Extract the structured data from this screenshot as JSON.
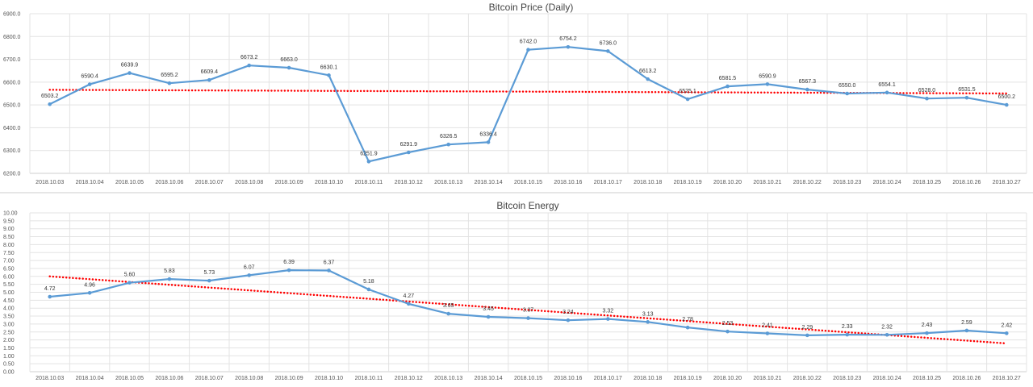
{
  "chart_data": [
    {
      "type": "line",
      "title": "Bitcoin Price (Daily)",
      "categories": [
        "2018.10.03",
        "2018.10.04",
        "2018.10.05",
        "2018.10.06",
        "2018.10.07",
        "2018.10.08",
        "2018.10.09",
        "2018.10.10",
        "2018.10.11",
        "2018.10.12",
        "2018.10.13",
        "2018.10.14",
        "2018.10.15",
        "2018.10.16",
        "2018.10.17",
        "2018.10.18",
        "2018.10.19",
        "2018.10.20",
        "2018.10.21",
        "2018.10.22",
        "2018.10.23",
        "2018.10.24",
        "2018.10.25",
        "2018.10.26",
        "2018.10.27"
      ],
      "series": [
        {
          "values": [
            6503.2,
            6590.4,
            6639.9,
            6595.2,
            6609.4,
            6673.2,
            6663.0,
            6630.1,
            6251.9,
            6291.9,
            6326.5,
            6336.4,
            6742.0,
            6754.2,
            6736.0,
            6613.2,
            6525.1,
            6581.5,
            6590.9,
            6567.3,
            6550.0,
            6554.1,
            6528.0,
            6531.5,
            6500.2
          ],
          "labels": [
            "6503.2",
            "6590.4",
            "6639.9",
            "6595.2",
            "6609.4",
            "6673.2",
            "6663.0",
            "6630.1",
            "6251.9",
            "6291.9",
            "6326.5",
            "6336.4",
            "6742.0",
            "6754.2",
            "6736.0",
            "6613.2",
            "6525.1",
            "6581.5",
            "6590.9",
            "6567.3",
            "6550.0",
            "6554.1",
            "6528.0",
            "6531.5",
            "6500.2"
          ],
          "color": "#5b9bd5"
        }
      ],
      "trendline": {
        "type": "linear",
        "color": "#ff0000",
        "style": "dotted",
        "start": 6562,
        "end": 6546
      },
      "ylim": [
        6200,
        6900
      ],
      "yticks": [
        "6200.0",
        "6300.0",
        "6400.0",
        "6500.0",
        "6600.0",
        "6700.0",
        "6800.0",
        "6900.0"
      ],
      "xlabel": "",
      "ylabel": "",
      "grid": true,
      "legend": "none"
    },
    {
      "type": "line",
      "title": "Bitcoin Energy",
      "categories": [
        "2018.10.03",
        "2018.10.04",
        "2018.10.05",
        "2018.10.06",
        "2018.10.07",
        "2018.10.08",
        "2018.10.09",
        "2018.10.10",
        "2018.10.11",
        "2018.10.12",
        "2018.10.13",
        "2018.10.14",
        "2018.10.15",
        "2018.10.16",
        "2018.10.17",
        "2018.10.18",
        "2018.10.19",
        "2018.10.20",
        "2018.10.21",
        "2018.10.22",
        "2018.10.23",
        "2018.10.24",
        "2018.10.25",
        "2018.10.26",
        "2018.10.27"
      ],
      "series": [
        {
          "values": [
            4.72,
            4.96,
            5.6,
            5.83,
            5.73,
            6.07,
            6.39,
            6.37,
            5.18,
            4.27,
            3.65,
            3.45,
            3.37,
            3.24,
            3.32,
            3.13,
            2.78,
            2.53,
            2.41,
            2.29,
            2.33,
            2.32,
            2.43,
            2.59,
            2.42
          ],
          "labels": [
            "4.72",
            "4.96",
            "5.60",
            "5.83",
            "5.73",
            "6.07",
            "6.39",
            "6.37",
            "5.18",
            "4.27",
            "3.65",
            "3.45",
            "3.37",
            "3.24",
            "3.32",
            "3.13",
            "2.78",
            "2.53",
            "2.41",
            "2.29",
            "2.33",
            "2.32",
            "2.43",
            "2.59",
            "2.42"
          ],
          "color": "#5b9bd5"
        }
      ],
      "trendline": {
        "type": "linear",
        "color": "#ff0000",
        "style": "dotted",
        "start": 6.0,
        "end": 1.78
      },
      "ylim": [
        0,
        10
      ],
      "yticks": [
        "0.00",
        "0.50",
        "1.00",
        "1.50",
        "2.00",
        "2.50",
        "3.00",
        "3.50",
        "4.00",
        "4.50",
        "5.00",
        "5.50",
        "6.00",
        "6.50",
        "7.00",
        "7.50",
        "8.00",
        "8.50",
        "9.00",
        "9.50",
        "10.00"
      ],
      "xlabel": "",
      "ylabel": "",
      "grid": true,
      "legend": "none"
    }
  ]
}
